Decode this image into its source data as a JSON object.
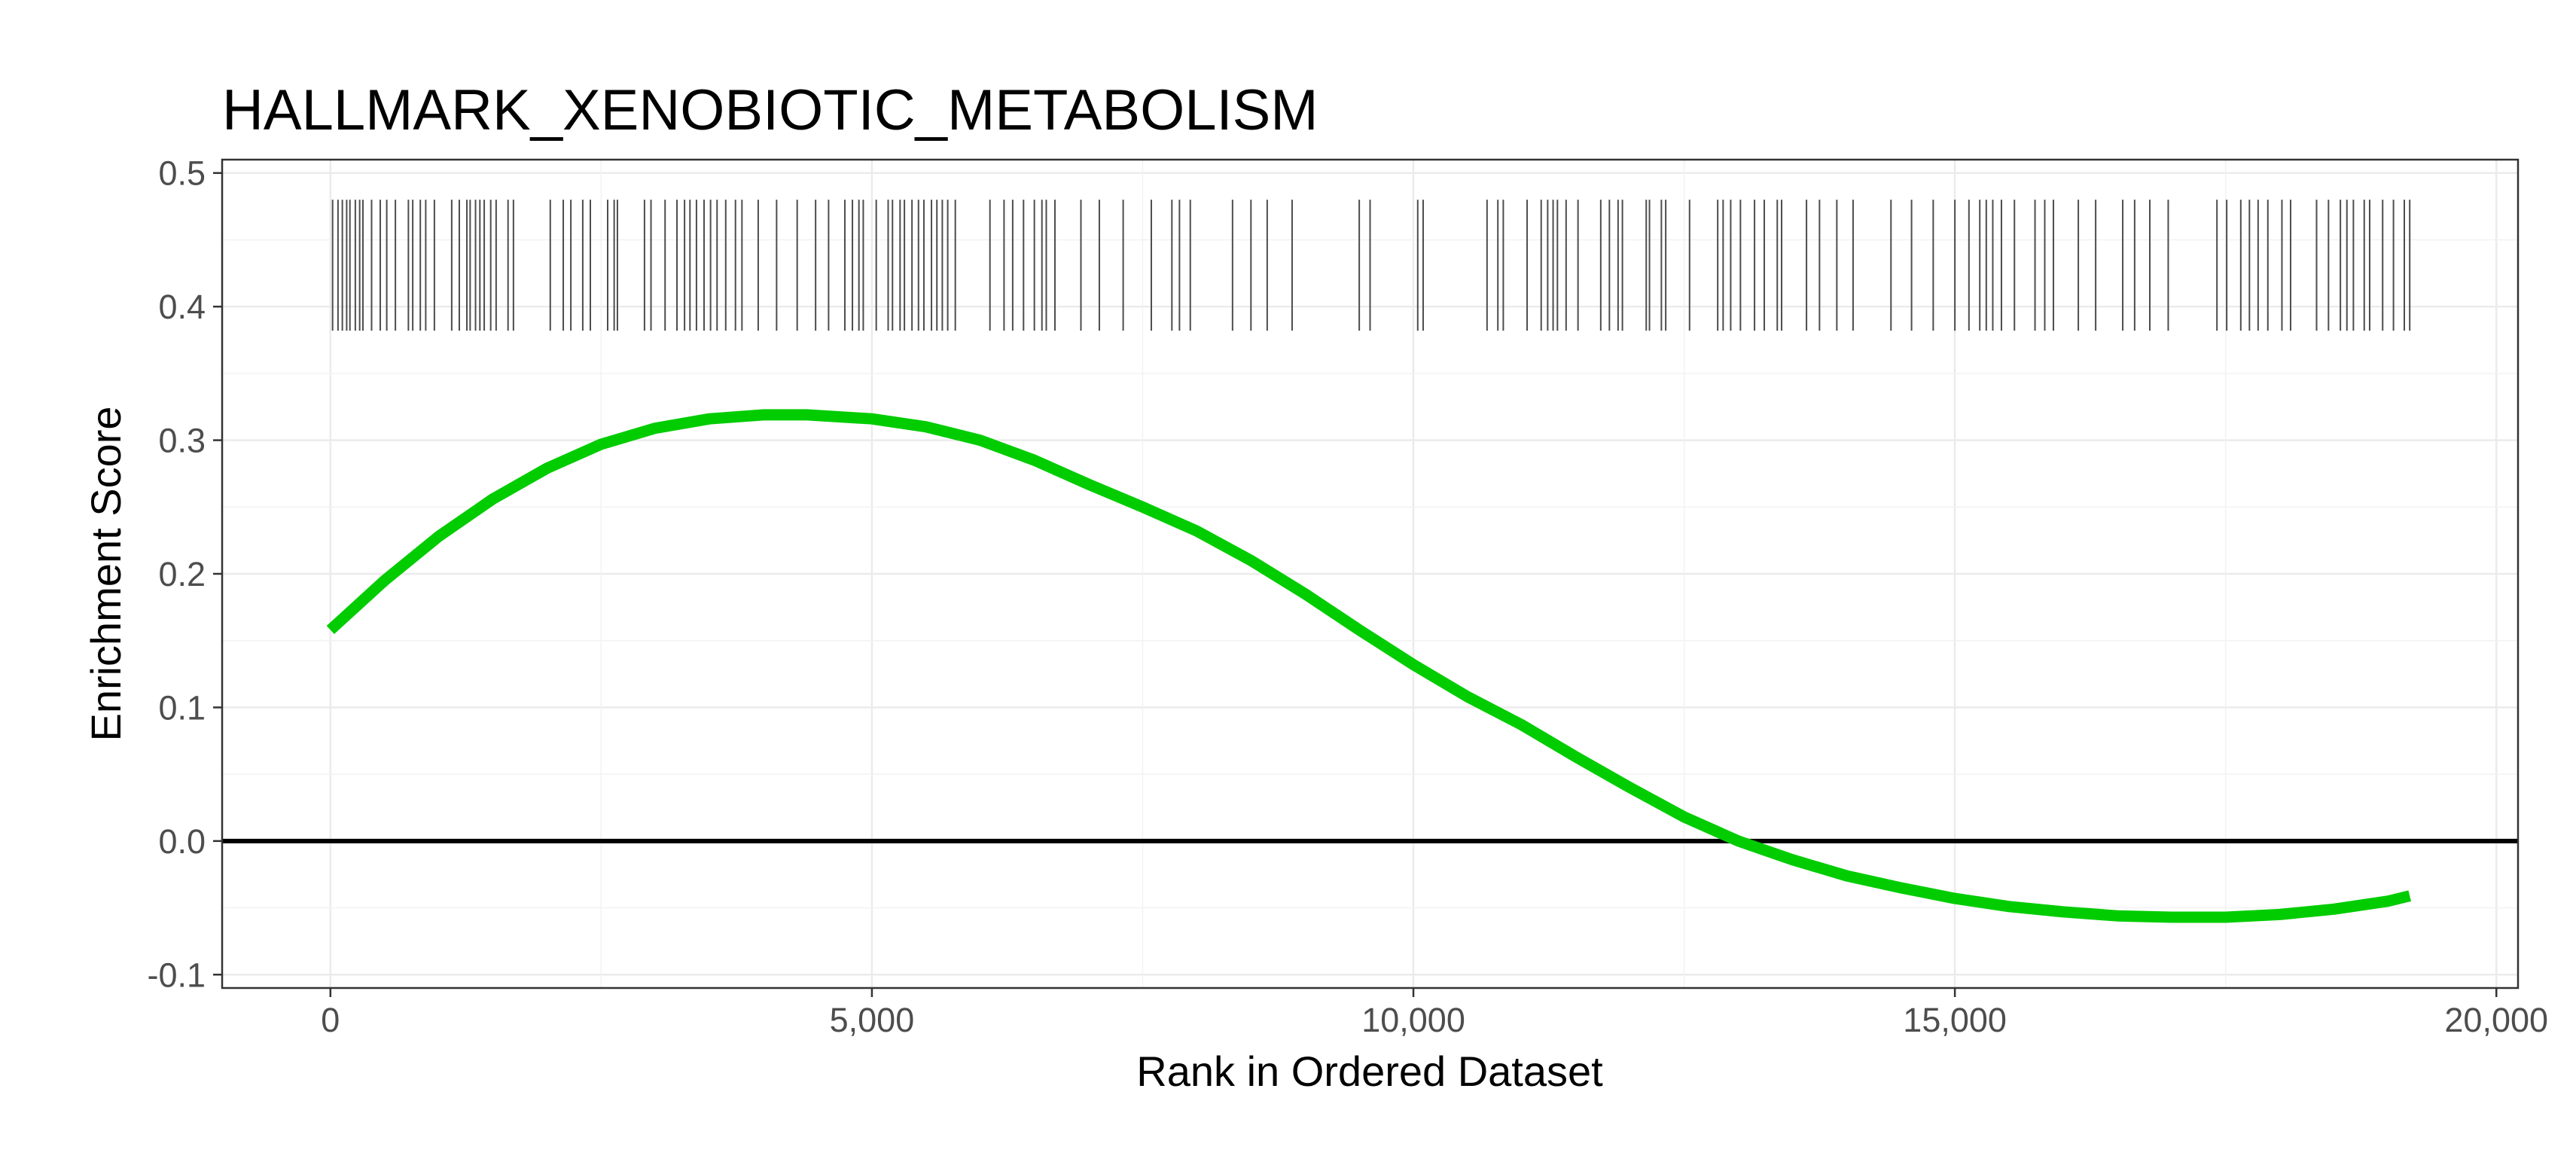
{
  "chart_data": {
    "type": "line",
    "title": "HALLMARK_XENOBIOTIC_METABOLISM",
    "xlabel": "Rank in Ordered Dataset",
    "ylabel": "Enrichment Score",
    "xlim": [
      -1000,
      20200
    ],
    "ylim": [
      -0.11,
      0.51
    ],
    "x_ticks": [
      0,
      5000,
      10000,
      15000,
      20000
    ],
    "x_tick_labels": [
      "0",
      "5,000",
      "10,000",
      "15,000",
      "20,000"
    ],
    "y_ticks": [
      -0.1,
      0.0,
      0.1,
      0.2,
      0.3,
      0.4,
      0.5
    ],
    "y_tick_labels": [
      "-0.1",
      "0.0",
      "0.1",
      "0.2",
      "0.3",
      "0.4",
      "0.5"
    ],
    "grid": true,
    "reference_line_y": 0,
    "series": [
      {
        "color": "#00cc00",
        "x": [
          0,
          500,
          1000,
          1500,
          2000,
          2500,
          3000,
          3500,
          4000,
          4400,
          5000,
          5500,
          6000,
          6500,
          7000,
          7500,
          8000,
          8500,
          9000,
          9500,
          10000,
          10500,
          11000,
          11500,
          12000,
          12500,
          13000,
          13500,
          14000,
          14500,
          15000,
          15500,
          16000,
          16500,
          17000,
          17500,
          18000,
          18500,
          19000,
          19200
        ],
        "y": [
          0.158,
          0.195,
          0.228,
          0.256,
          0.279,
          0.297,
          0.309,
          0.316,
          0.319,
          0.319,
          0.316,
          0.31,
          0.3,
          0.285,
          0.267,
          0.25,
          0.232,
          0.21,
          0.185,
          0.158,
          0.132,
          0.108,
          0.087,
          0.063,
          0.04,
          0.018,
          0.0,
          -0.014,
          -0.026,
          -0.035,
          -0.043,
          -0.049,
          -0.053,
          -0.056,
          -0.057,
          -0.057,
          -0.055,
          -0.051,
          -0.045,
          -0.041
        ]
      }
    ],
    "gene_hit_ranks": [
      20,
      70,
      110,
      150,
      180,
      230,
      270,
      300,
      380,
      460,
      520,
      600,
      720,
      760,
      830,
      880,
      960,
      1120,
      1190,
      1260,
      1290,
      1340,
      1380,
      1420,
      1480,
      1530,
      1640,
      1690,
      2030,
      2150,
      2220,
      2330,
      2400,
      2560,
      2620,
      2650,
      2900,
      2960,
      3090,
      3200,
      3270,
      3320,
      3380,
      3450,
      3510,
      3570,
      3650,
      3740,
      3800,
      3950,
      4120,
      4310,
      4480,
      4600,
      4750,
      4820,
      4880,
      4920,
      5040,
      5150,
      5190,
      5260,
      5300,
      5370,
      5430,
      5480,
      5550,
      5600,
      5650,
      5700,
      5770,
      6090,
      6220,
      6300,
      6400,
      6500,
      6570,
      6610,
      6690,
      6930,
      7100,
      7320,
      7580,
      7770,
      7840,
      7940,
      8330,
      8500,
      8650,
      8880,
      9500,
      9600,
      10040,
      10090,
      10680,
      10780,
      10830,
      11050,
      11180,
      11240,
      11290,
      11330,
      11410,
      11520,
      11730,
      11810,
      11890,
      11930,
      12150,
      12180,
      12290,
      12330,
      12550,
      12810,
      12860,
      12930,
      13020,
      13150,
      13240,
      13360,
      13400,
      13630,
      13750,
      13910,
      14060,
      14410,
      14600,
      14800,
      15000,
      15130,
      15230,
      15290,
      15350,
      15430,
      15550,
      15740,
      15830,
      15910,
      16140,
      16300,
      16550,
      16660,
      16800,
      16970,
      17420,
      17510,
      17640,
      17720,
      17800,
      17890,
      18020,
      18100,
      18340,
      18450,
      18560,
      18620,
      18680,
      18780,
      18830,
      18950,
      19050,
      19150,
      19200
    ]
  }
}
